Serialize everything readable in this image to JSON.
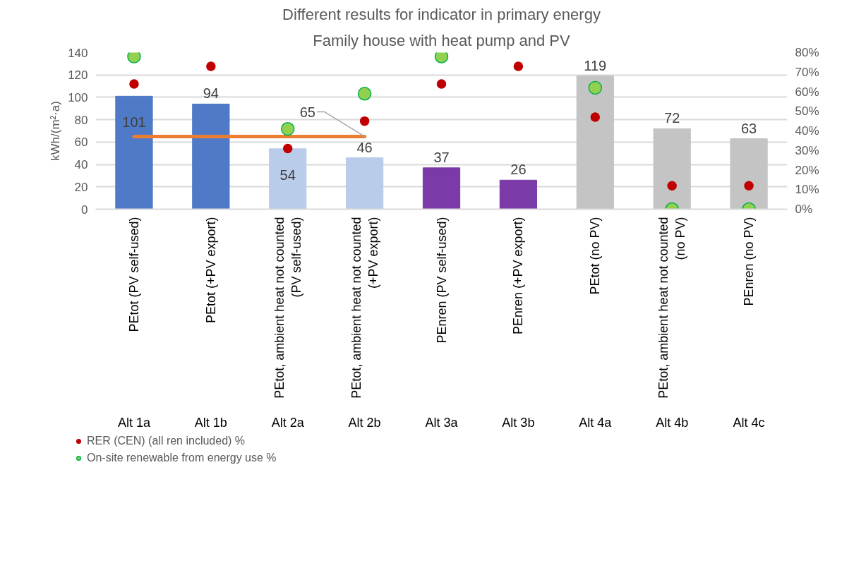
{
  "chart_data": {
    "type": "bar",
    "title": "Different results for indicator in primary energy",
    "subtitle": "Family house with heat pump and PV",
    "ylabel": "kWh/(m²·a)",
    "categories": [
      "PEtot (PV self-used)",
      "PEtot (+PV export)",
      "PEtot, ambient heat not counted (PV self-used)",
      "PEtot, ambient heat not counted (+PV export)",
      "PEnren (PV self-used)",
      "PEnren (+PV export)",
      "PEtot (no PV)",
      "PEtot, ambient heat not counted (no PV)",
      "PEnren (no PV)"
    ],
    "annotations": [
      "Alt 1a",
      "Alt 1b",
      "Alt 2a",
      "Alt 2b",
      "Alt 3a",
      "Alt 3b",
      "Alt 4a",
      "Alt 4b",
      "Alt 4c"
    ],
    "series": [
      {
        "colors": [
          "#4e7ac7",
          "#4e7ac7",
          "#b9cce9",
          "#b9cce9",
          "#7a3aa8",
          "#7a3aa8",
          "#c4c4c4",
          "#c4c4c4",
          "#c4c4c4"
        ],
        "values": [
          101,
          94,
          54,
          46,
          37,
          26,
          119,
          72,
          63
        ],
        "data_labels": true
      },
      {
        "type": "line",
        "color": "#ed7d31",
        "values": [
          65,
          65,
          65,
          65,
          null,
          null,
          null,
          null,
          null
        ],
        "value_labels": [
          null,
          null,
          null,
          "65",
          null,
          null,
          null,
          null,
          null
        ]
      },
      {
        "type": "scatter",
        "name": "RER (CEN) (all ren included) %",
        "axis": "y2",
        "color": "#c00000",
        "marker": "circle",
        "values": [
          64,
          73,
          31,
          45,
          64,
          73,
          47,
          12,
          12
        ]
      },
      {
        "type": "scatter",
        "name": "On-site renewable from energy use %",
        "axis": "y2",
        "color": "#92d050",
        "marker": "circle",
        "values": [
          78,
          null,
          41,
          59,
          78,
          null,
          62,
          0,
          0
        ]
      }
    ],
    "ylim": [
      0,
      140
    ],
    "yticks": [
      0,
      20,
      40,
      60,
      80,
      100,
      120,
      140
    ],
    "y2lim": [
      0,
      80
    ],
    "y2ticks": [
      {
        "value": 0,
        "label": "0%"
      },
      {
        "value": 10,
        "label": "10%"
      },
      {
        "value": 20,
        "label": "20%"
      },
      {
        "value": 30,
        "label": "30%"
      },
      {
        "value": 40,
        "label": "40%"
      },
      {
        "value": 50,
        "label": "50%"
      },
      {
        "value": 60,
        "label": "60%"
      },
      {
        "value": 70,
        "label": "70%"
      },
      {
        "value": 80,
        "label": "80%"
      }
    ],
    "grid": "y",
    "legend": "bottom left"
  }
}
